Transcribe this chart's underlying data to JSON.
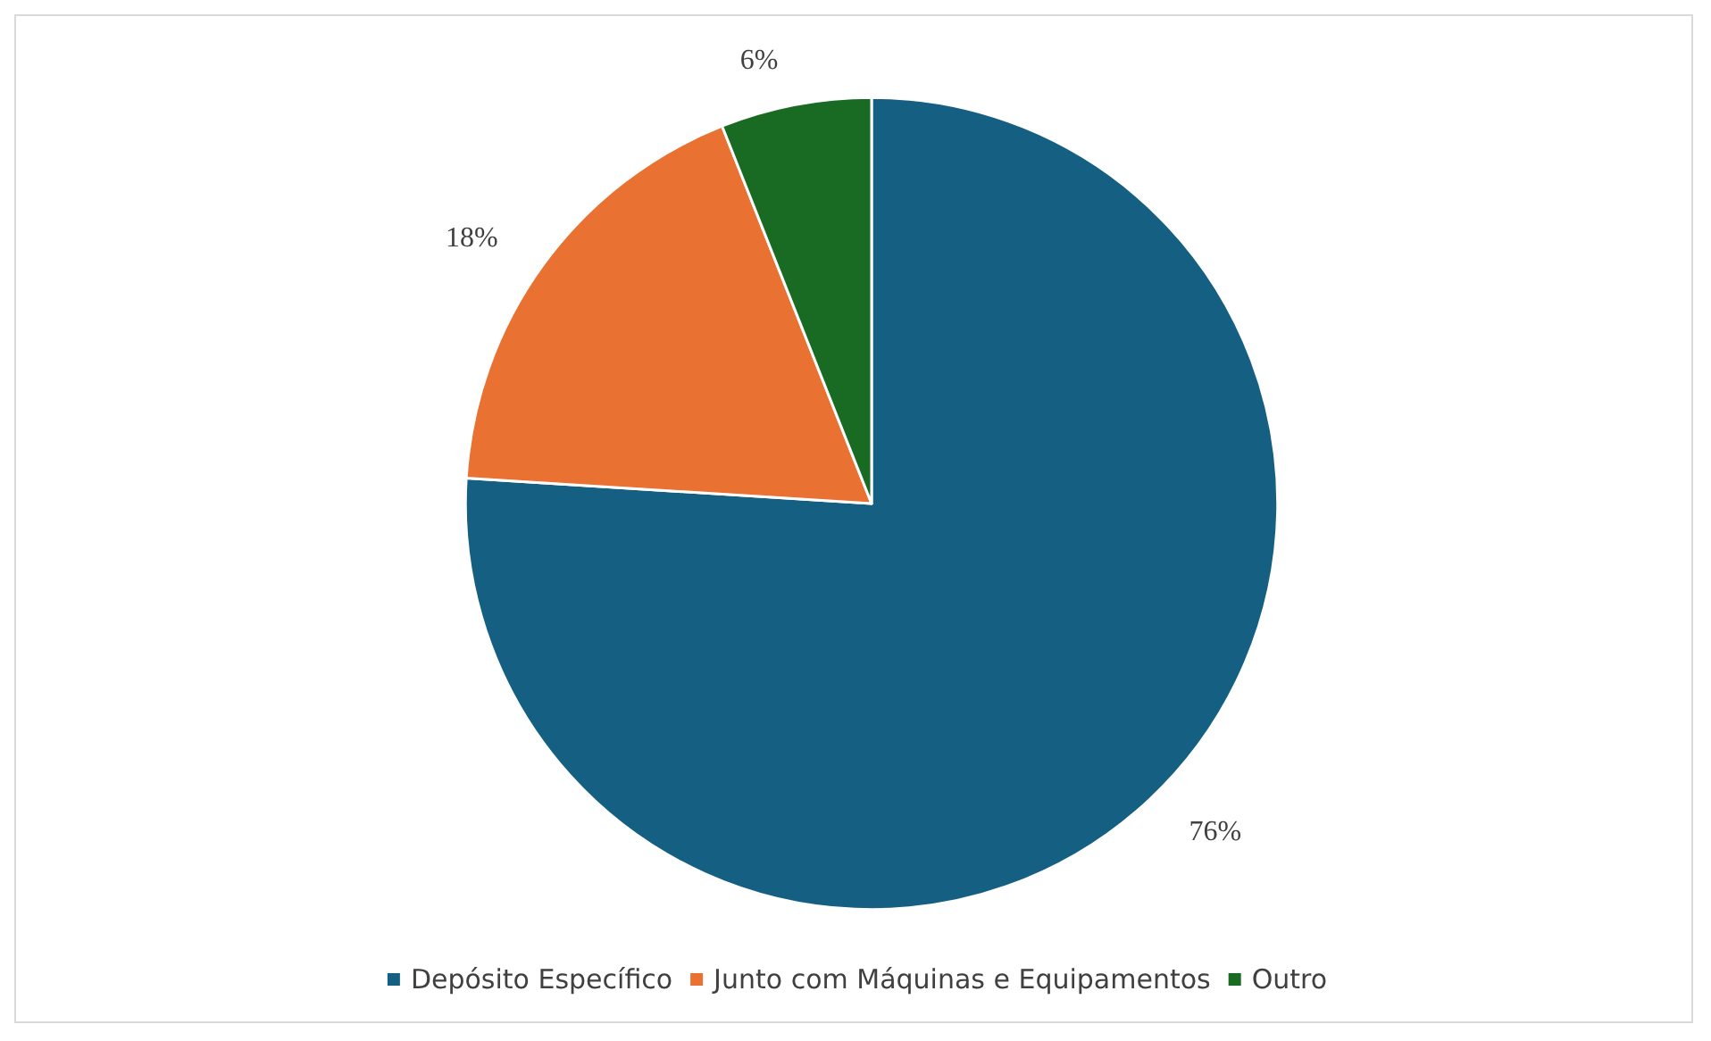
{
  "chart_data": {
    "type": "pie",
    "categories": [
      "Depósito Específico",
      "Junto com Máquinas e Equipamentos",
      "Outro"
    ],
    "values": [
      76,
      18,
      6
    ],
    "colors": [
      "#156082",
      "#e97132",
      "#196b24"
    ],
    "value_labels": [
      "76%",
      "18%",
      "6%"
    ],
    "legend": "bottom"
  }
}
